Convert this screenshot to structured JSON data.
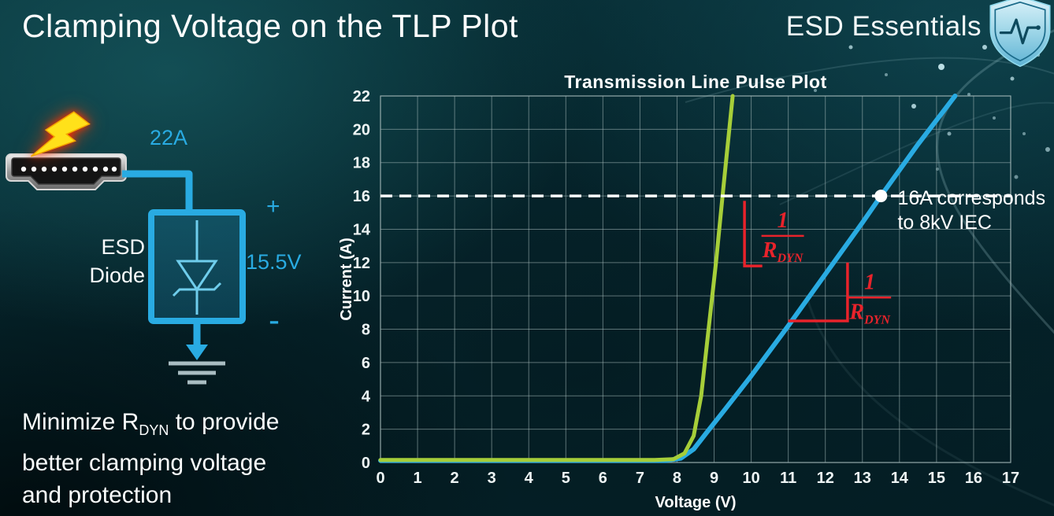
{
  "slide": {
    "title": "Clamping Voltage on the TLP Plot",
    "brand": "ESD Essentials"
  },
  "diagram": {
    "current_label": "22A",
    "device_line1": "ESD",
    "device_line2": "Diode",
    "plus": "+",
    "voltage": "15.5V",
    "minus": "-"
  },
  "caption": {
    "pre": "Minimize R",
    "sub": "DYN",
    "post": " to provide",
    "line2": "better clamping voltage",
    "line3": "and protection"
  },
  "chart_data": {
    "type": "line",
    "title": "Transmission Line Pulse Plot",
    "xlabel": "Voltage (V)",
    "ylabel": "Current (A)",
    "xlim": [
      0,
      17
    ],
    "ylim": [
      0,
      22
    ],
    "x_ticks": [
      0,
      1,
      2,
      3,
      4,
      5,
      6,
      7,
      8,
      9,
      10,
      11,
      12,
      13,
      14,
      15,
      16,
      17
    ],
    "y_ticks": [
      0,
      2,
      4,
      6,
      8,
      10,
      12,
      14,
      16,
      18,
      20,
      22
    ],
    "grid": true,
    "grid_color": "rgba(165,185,185,0.55)",
    "accent_red": "#e8232b",
    "series": [
      {
        "name": "high-rdyn-curve",
        "color": "#29abe2",
        "width": 6,
        "points": [
          [
            0,
            0.12
          ],
          [
            7.7,
            0.12
          ],
          [
            8.1,
            0.25
          ],
          [
            8.45,
            0.8
          ],
          [
            8.8,
            1.8
          ],
          [
            9.3,
            3.2
          ],
          [
            10,
            5.2
          ],
          [
            11,
            8.2
          ],
          [
            12,
            11.3
          ],
          [
            13,
            14.4
          ],
          [
            13.5,
            16
          ],
          [
            14.5,
            19.1
          ],
          [
            15.5,
            22
          ]
        ]
      },
      {
        "name": "low-rdyn-curve",
        "color": "#a6ce39",
        "width": 5,
        "points": [
          [
            0,
            0.15
          ],
          [
            7.4,
            0.15
          ],
          [
            7.9,
            0.2
          ],
          [
            8.2,
            0.55
          ],
          [
            8.45,
            1.6
          ],
          [
            8.65,
            4
          ],
          [
            8.85,
            8
          ],
          [
            9.05,
            12
          ],
          [
            9.25,
            16.5
          ],
          [
            9.5,
            22
          ]
        ]
      }
    ],
    "reference_line": {
      "y": 16,
      "color": "#ffffff",
      "style": "dashed"
    },
    "marker": {
      "x": 13.5,
      "y": 16
    },
    "annotation": {
      "x": 13.95,
      "y": 15.95,
      "lines": [
        "16A corresponds",
        "to 8kV IEC"
      ]
    },
    "slope_markers": [
      {
        "curve": "low-rdyn-curve",
        "points": [
          [
            9.82,
            15.7
          ],
          [
            9.82,
            11.8
          ],
          [
            10.3,
            11.8
          ]
        ]
      },
      {
        "curve": "high-rdyn-curve",
        "points": [
          [
            11.0,
            8.5
          ],
          [
            12.6,
            8.5
          ],
          [
            12.6,
            12.0
          ]
        ]
      }
    ],
    "fractions": [
      {
        "x": 10.85,
        "y": 13.6,
        "numerator": "1",
        "denominator": "R",
        "denominator_sub": "DYN"
      },
      {
        "x": 13.2,
        "y": 9.9,
        "numerator": "1",
        "denominator": "R",
        "denominator_sub": "DYN"
      }
    ]
  }
}
